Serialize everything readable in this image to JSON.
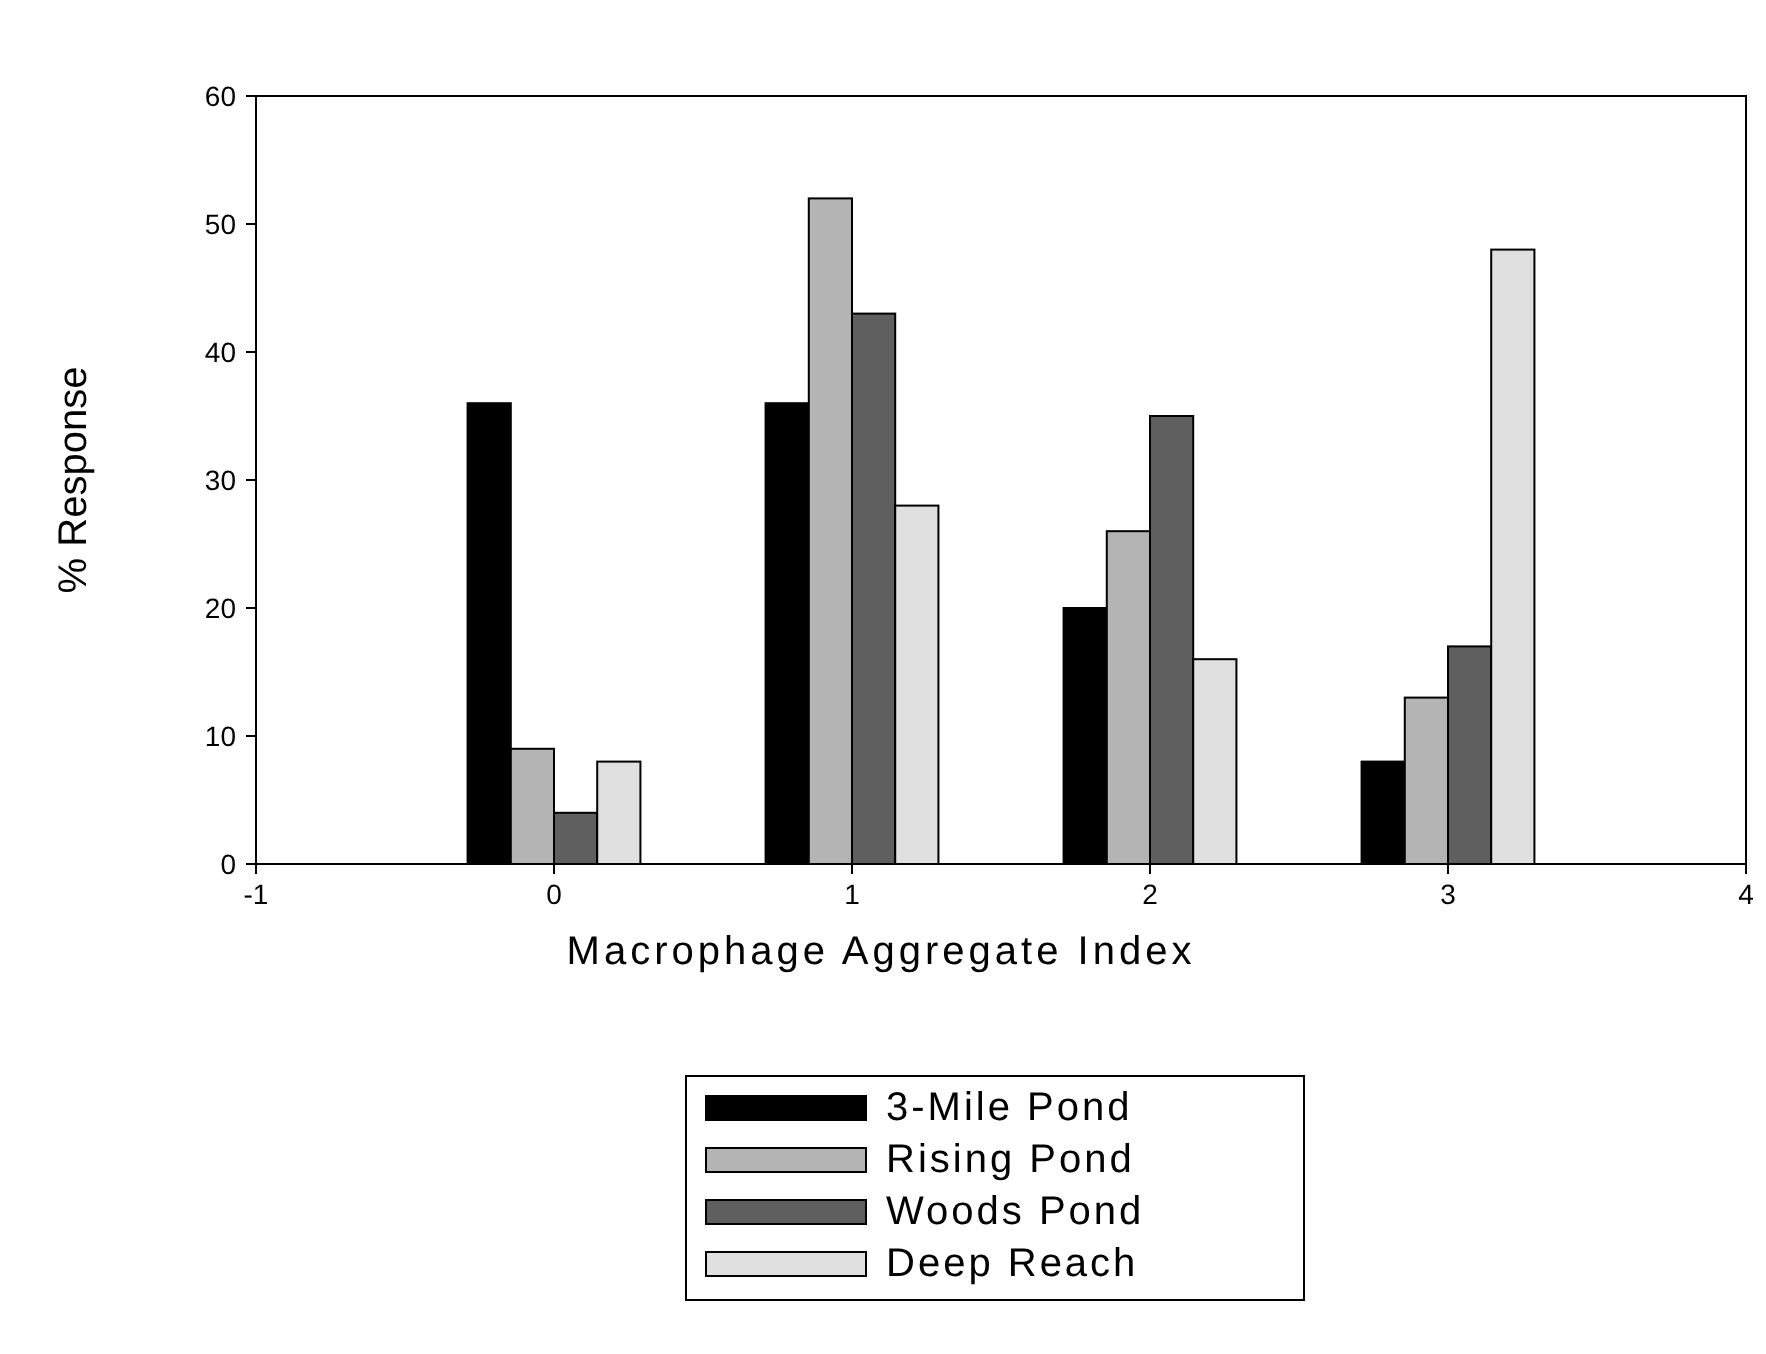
{
  "chart_data": {
    "type": "bar",
    "xlabel": "Macrophage Aggregate Index",
    "ylabel": "% Response",
    "x": [
      0,
      1,
      2,
      3
    ],
    "series": [
      {
        "name": "3-Mile Pond",
        "color": "#000000",
        "values": [
          36,
          36,
          20,
          8
        ]
      },
      {
        "name": "Rising Pond",
        "color": "#b4b4b4",
        "values": [
          9,
          52,
          26,
          13
        ]
      },
      {
        "name": "Woods Pond",
        "color": "#5f5f5f",
        "values": [
          4,
          43,
          35,
          17
        ]
      },
      {
        "name": "Deep Reach",
        "color": "#e0e0e0",
        "values": [
          8,
          28,
          16,
          48
        ]
      }
    ],
    "xlim": [
      -1,
      4
    ],
    "xticks": [
      -1,
      0,
      1,
      2,
      3,
      4
    ],
    "ylim": [
      0,
      60
    ],
    "yticks": [
      0,
      10,
      20,
      30,
      40,
      50,
      60
    ],
    "grid": false,
    "legend": "bottom"
  }
}
